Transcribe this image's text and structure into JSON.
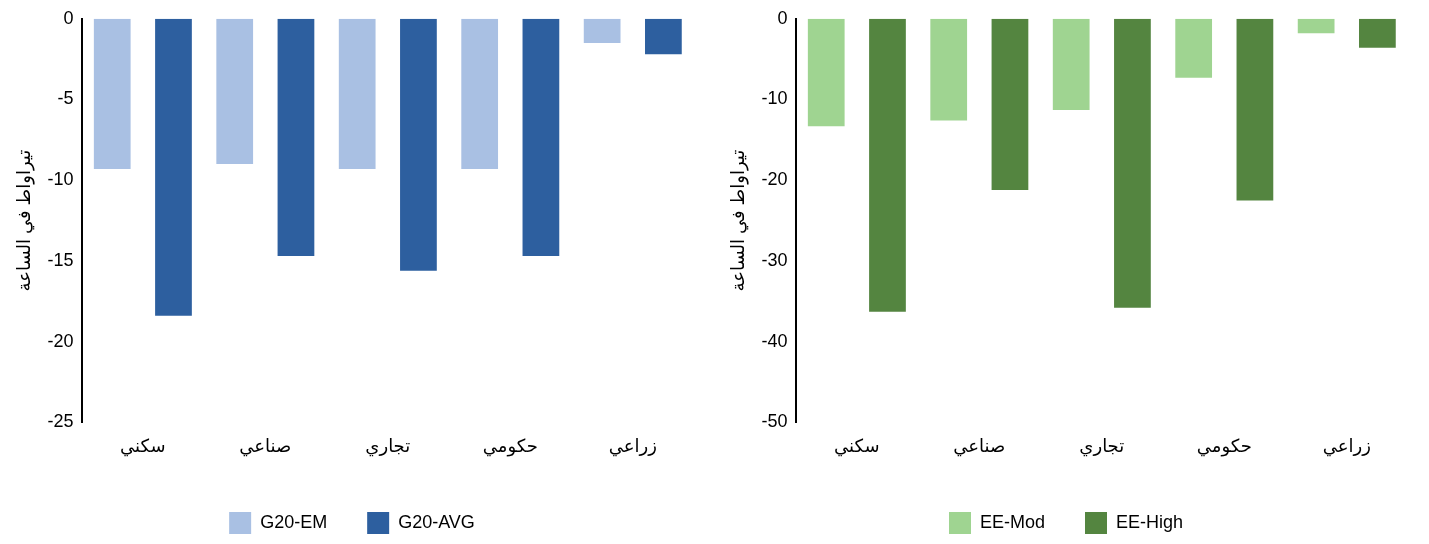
{
  "chart_data": [
    {
      "type": "bar",
      "ylabel": "تيراواط في الساعة",
      "categories": [
        "سكني",
        "صناعي",
        "تجاري",
        "حكومي",
        "زراعي"
      ],
      "series": [
        {
          "name": "G20-EM",
          "color": "#a9c0e3",
          "values": [
            -9.3,
            -9.0,
            -9.3,
            -9.3,
            -1.5
          ]
        },
        {
          "name": "G20-AVG",
          "color": "#2d5f9f",
          "values": [
            -18.4,
            -14.7,
            -15.6,
            -14.7,
            -2.2
          ]
        }
      ],
      "ylim": [
        -25,
        0
      ],
      "yticks": [
        -25,
        -20,
        -15,
        -10,
        -5,
        0
      ],
      "grid": false,
      "legend": "bottom"
    },
    {
      "type": "bar",
      "ylabel": "تيراواط في الساعة",
      "categories": [
        "سكني",
        "صناعي",
        "تجاري",
        "حكومي",
        "زراعي"
      ],
      "series": [
        {
          "name": "EE-Mod",
          "color": "#9fd491",
          "values": [
            -13.3,
            -12.6,
            -11.3,
            -7.3,
            -1.8
          ]
        },
        {
          "name": "EE-High",
          "color": "#548540",
          "values": [
            -36.3,
            -21.2,
            -35.8,
            -22.5,
            -3.6
          ]
        }
      ],
      "ylim": [
        -50,
        0
      ],
      "yticks": [
        -50,
        -40,
        -30,
        -20,
        -10,
        0
      ],
      "grid": false,
      "legend": "bottom"
    }
  ]
}
